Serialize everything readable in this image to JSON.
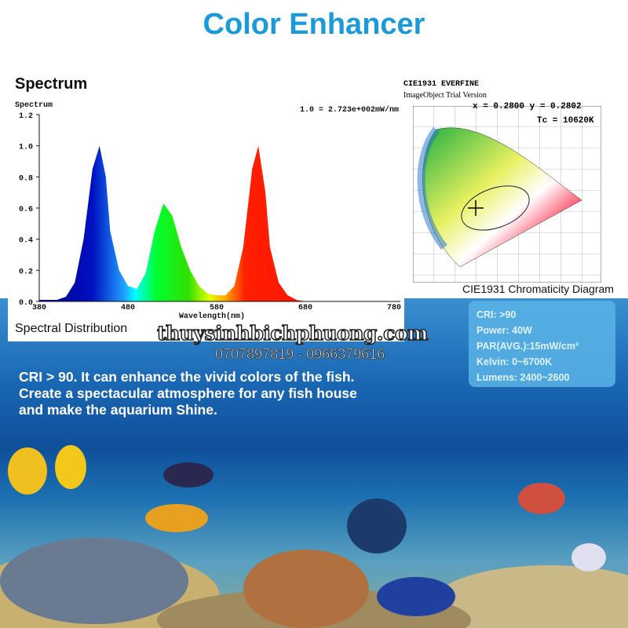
{
  "title": "Color Enhancer",
  "spectrum": {
    "heading": "Spectrum",
    "footer": "Spectral Distribution",
    "chart_data": {
      "type": "area",
      "ylabel": "Spectrum",
      "xlabel": "Wavelength(nm)",
      "annotation": "1.0 = 2.723e+002mW/nm",
      "xlim": [
        380,
        780
      ],
      "ylim": [
        0,
        1.2
      ],
      "xticks": [
        "380",
        "480",
        "580",
        "680",
        "780"
      ],
      "yticks": [
        "0.0",
        "0.2",
        "0.4",
        "0.6",
        "0.8",
        "1.0",
        "1.2"
      ],
      "grid": false,
      "x": [
        380,
        400,
        410,
        420,
        430,
        440,
        448,
        455,
        460,
        470,
        480,
        490,
        500,
        510,
        520,
        530,
        540,
        550,
        560,
        570,
        580,
        590,
        600,
        610,
        620,
        627,
        635,
        640,
        650,
        660,
        670,
        680,
        780
      ],
      "y": [
        0.01,
        0.01,
        0.03,
        0.12,
        0.4,
        0.85,
        1.0,
        0.8,
        0.45,
        0.2,
        0.1,
        0.08,
        0.18,
        0.45,
        0.63,
        0.55,
        0.35,
        0.2,
        0.1,
        0.05,
        0.04,
        0.04,
        0.1,
        0.35,
        0.85,
        1.0,
        0.7,
        0.35,
        0.12,
        0.04,
        0.01,
        0,
        0
      ]
    }
  },
  "cie": {
    "line1": "CIE1931 EVERFINE",
    "line2": "ImageObject Trial Version",
    "xy": "x = 0.2800 y = 0.2802",
    "tc": "Tc = 10620K",
    "caption": "CIE1931 Chromaticity Diagram"
  },
  "watermark": "thuysinhbichphuong.com",
  "phone": "0707897819 - 0966379616",
  "specs": [
    "CRI: >90",
    "Power: 40W",
    "PAR(AVG.):15mW/cm²",
    "Kelvin: 0~6700K",
    "Lumens: 2400~2600"
  ],
  "description": [
    "CRI > 90. It can enhance the vivid colors of the fish.",
    "Create a spectacular atmosphere for any fish house",
    "and make the aquarium Shine."
  ]
}
